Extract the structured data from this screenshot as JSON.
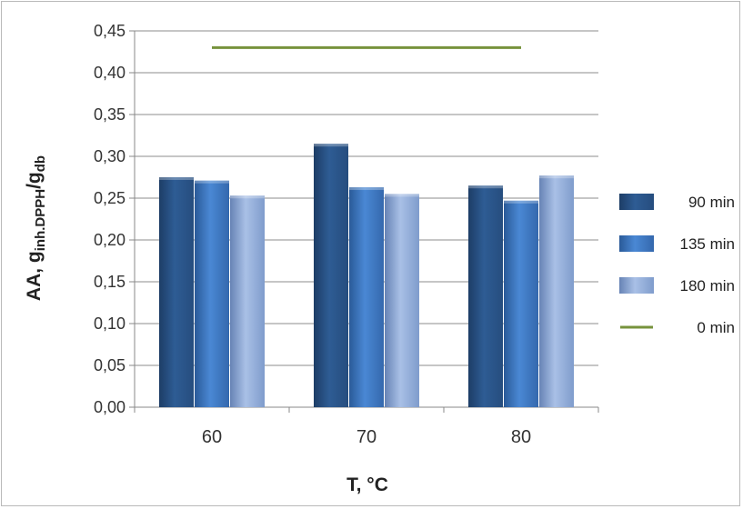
{
  "chart_data": {
    "type": "bar",
    "categories": [
      "60",
      "70",
      "80"
    ],
    "series": [
      {
        "name": "90 min",
        "values": [
          0.275,
          0.315,
          0.265
        ],
        "color": "#2e5c94"
      },
      {
        "name": "135 min",
        "values": [
          0.271,
          0.263,
          0.247
        ],
        "color": "#3c78c4"
      },
      {
        "name": "180 min",
        "values": [
          0.253,
          0.255,
          0.277
        ],
        "color": "#7f9fd0"
      }
    ],
    "reference_line": {
      "name": "0 min",
      "value": 0.43,
      "type": "line",
      "color": "#77933c"
    },
    "xlabel": "T, °C",
    "ylabel": {
      "main": "AA, g",
      "sub1": "inh.DPPH",
      "mid": "/g",
      "sub2": "db"
    },
    "ylim": [
      0,
      0.45
    ],
    "yticks": [
      "0,00",
      "0,05",
      "0,10",
      "0,15",
      "0,20",
      "0,25",
      "0,30",
      "0,35",
      "0,40",
      "0,45"
    ],
    "grid": "horizontal",
    "legend_position": "right"
  }
}
